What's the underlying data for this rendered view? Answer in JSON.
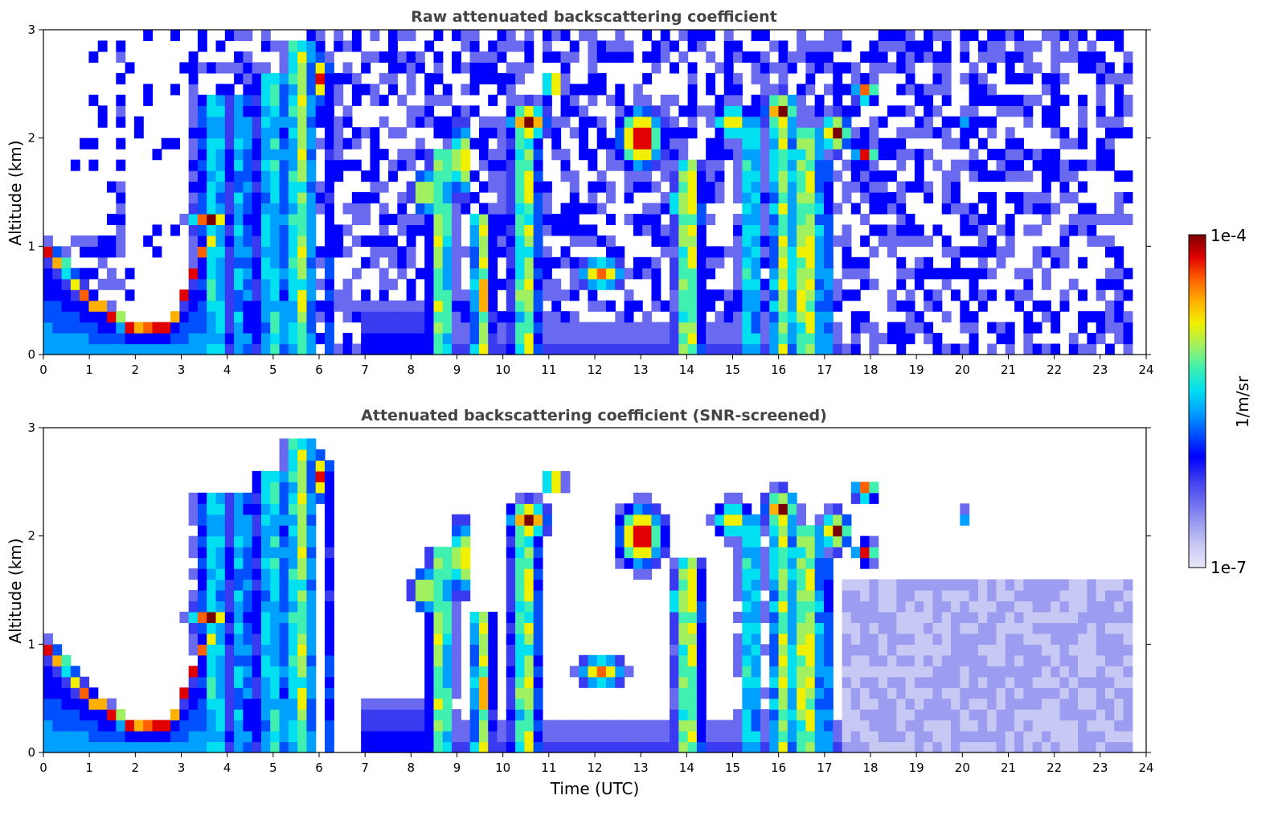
{
  "colors": {
    "colormap": [
      "#e8e8fa",
      "#c8c8f4",
      "#9c9cf0",
      "#6a6af0",
      "#3a3af0",
      "#0000ff",
      "#0050ff",
      "#00a0ff",
      "#00e0f0",
      "#40f0b0",
      "#a0f060",
      "#f0f000",
      "#ffb000",
      "#ff6000",
      "#e00000",
      "#7a0000"
    ],
    "frame": "#000000",
    "title": "#444444"
  },
  "colorbar": {
    "label": "1/m/sr",
    "max_label": "1e-4",
    "min_label": "1e-7"
  },
  "chart_data": [
    {
      "type": "heatmap",
      "title": "Raw attenuated backscattering coefficient",
      "xlabel": "",
      "ylabel": "Altitude (km)",
      "xlim": [
        0,
        24
      ],
      "ylim": [
        0,
        3
      ],
      "xticks": [
        "0",
        "1",
        "2",
        "3",
        "4",
        "5",
        "6",
        "7",
        "8",
        "9",
        "10",
        "11",
        "12",
        "13",
        "14",
        "15",
        "16",
        "17",
        "18",
        "19",
        "20",
        "21",
        "22",
        "23",
        "24"
      ],
      "yticks": [
        "0",
        "1",
        "2",
        "3"
      ],
      "data_extent_x": [
        0,
        23.7
      ],
      "color_scale": "log",
      "color_range": [
        1e-07,
        0.0001
      ]
    },
    {
      "type": "heatmap",
      "title": "Attenuated backscattering coefficient (SNR-screened)",
      "xlabel": "Time (UTC)",
      "ylabel": "Altitude (km)",
      "xlim": [
        0,
        24
      ],
      "ylim": [
        0,
        3
      ],
      "xticks": [
        "0",
        "1",
        "2",
        "3",
        "4",
        "5",
        "6",
        "7",
        "8",
        "9",
        "10",
        "11",
        "12",
        "13",
        "14",
        "15",
        "16",
        "17",
        "18",
        "19",
        "20",
        "21",
        "22",
        "23",
        "24"
      ],
      "yticks": [
        "0",
        "1",
        "2",
        "3"
      ],
      "data_extent_x": [
        0,
        23.7
      ],
      "color_scale": "log",
      "color_range": [
        1e-07,
        0.0001
      ]
    }
  ]
}
